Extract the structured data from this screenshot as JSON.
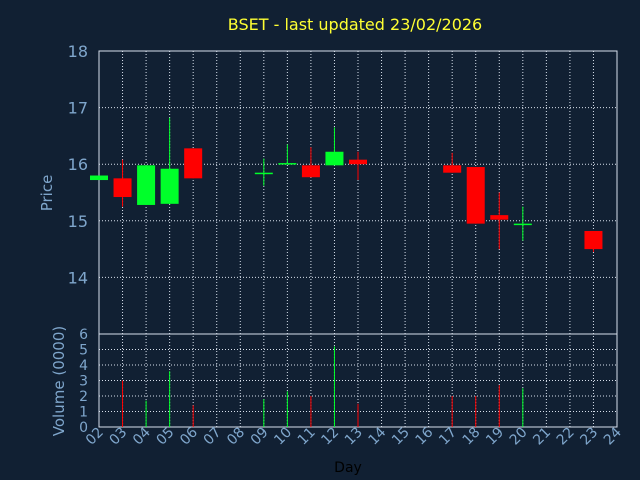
{
  "colors": {
    "background": "#112033",
    "plot_border": "#d8e0ec",
    "grid": "#d8e0ec",
    "title": "#ffff33",
    "axis_text": "#7fa6cc",
    "up": "#00ff2a",
    "down": "#ff0000",
    "xlabel_text": "#000000"
  },
  "chart_data": {
    "type": "candlestick",
    "title": "BSET - last updated 23/02/2026",
    "xlabel": "Day",
    "ylabel_price": "Price",
    "ylabel_volume": "Volume (0000)",
    "grid": true,
    "x_ticks": [
      "02",
      "03",
      "04",
      "05",
      "06",
      "07",
      "08",
      "09",
      "10",
      "11",
      "12",
      "13",
      "14",
      "15",
      "16",
      "17",
      "18",
      "19",
      "20",
      "21",
      "22",
      "23",
      "24"
    ],
    "price_ylim": [
      13.0,
      18.0
    ],
    "price_yticks": [
      "14",
      "15",
      "16",
      "17",
      "18"
    ],
    "volume_ylim": [
      0,
      6
    ],
    "volume_yticks": [
      "0",
      "1",
      "2",
      "3",
      "4",
      "5",
      "6"
    ],
    "candles": [
      {
        "day": "02",
        "open": 15.72,
        "close": 15.8,
        "high": 15.8,
        "low": 15.72,
        "volume": 0.0
      },
      {
        "day": "03",
        "open": 15.75,
        "close": 15.42,
        "high": 16.08,
        "low": 15.25,
        "volume": 3.0
      },
      {
        "day": "04",
        "open": 15.28,
        "close": 15.98,
        "high": 15.98,
        "low": 15.28,
        "volume": 1.7
      },
      {
        "day": "05",
        "open": 15.3,
        "close": 15.92,
        "high": 16.82,
        "low": 15.3,
        "volume": 3.6
      },
      {
        "day": "06",
        "open": 16.28,
        "close": 15.75,
        "high": 16.28,
        "low": 15.75,
        "volume": 1.4
      },
      {
        "day": "09",
        "open": 15.85,
        "close": 15.85,
        "high": 16.1,
        "low": 15.62,
        "volume": 1.8
      },
      {
        "day": "10",
        "open": 16.0,
        "close": 16.02,
        "high": 16.35,
        "low": 16.0,
        "volume": 2.3
      },
      {
        "day": "11",
        "open": 15.98,
        "close": 15.77,
        "high": 16.3,
        "low": 15.77,
        "volume": 2.0
      },
      {
        "day": "12",
        "open": 15.98,
        "close": 16.22,
        "high": 16.65,
        "low": 15.98,
        "volume": 5.2
      },
      {
        "day": "13",
        "open": 16.08,
        "close": 16.0,
        "high": 16.22,
        "low": 15.72,
        "volume": 1.5
      },
      {
        "day": "17",
        "open": 15.98,
        "close": 15.85,
        "high": 16.2,
        "low": 15.85,
        "volume": 2.0
      },
      {
        "day": "18",
        "open": 15.95,
        "close": 14.95,
        "high": 15.95,
        "low": 14.95,
        "volume": 2.0
      },
      {
        "day": "19",
        "open": 15.1,
        "close": 15.02,
        "high": 15.5,
        "low": 14.5,
        "volume": 2.7
      },
      {
        "day": "20",
        "open": 14.93,
        "close": 14.95,
        "high": 15.25,
        "low": 14.65,
        "volume": 2.5
      },
      {
        "day": "23",
        "open": 14.82,
        "close": 14.5,
        "high": 14.82,
        "low": 14.45,
        "volume": 0.0
      }
    ]
  }
}
